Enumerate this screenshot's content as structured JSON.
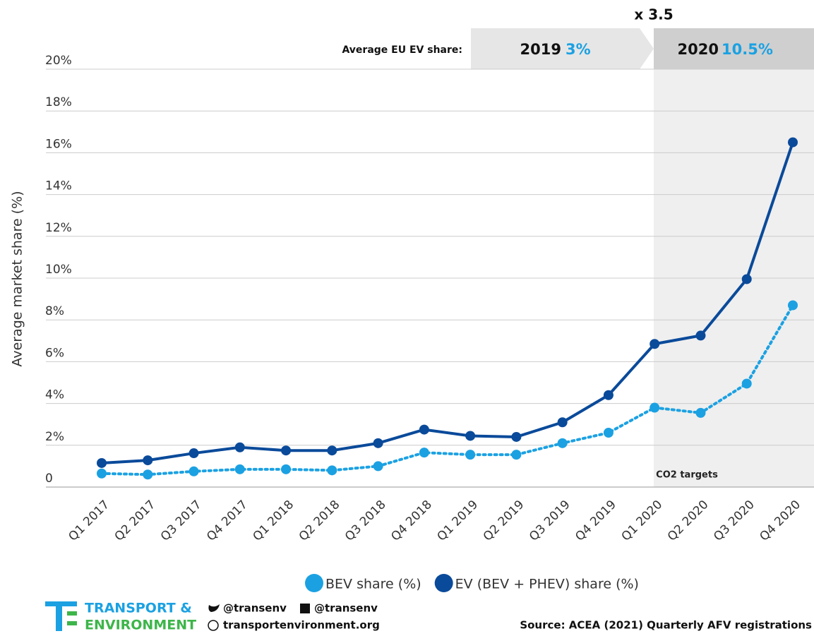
{
  "chart_data": {
    "type": "line",
    "y_label": "Average market share (%)",
    "categories": [
      "Q1 2017",
      "Q2 2017",
      "Q3 2017",
      "Q4 2017",
      "Q1 2018",
      "Q2 2018",
      "Q3 2018",
      "Q4 2018",
      "Q1 2019",
      "Q2 2019",
      "Q3 2019",
      "Q4 2019",
      "Q1 2020",
      "Q2 2020",
      "Q3 2020",
      "Q4 2020"
    ],
    "series": [
      {
        "name": "BEV share (%)",
        "color": "#1ba1e2",
        "style": "dotted",
        "values": [
          0.65,
          0.6,
          0.75,
          0.85,
          0.85,
          0.8,
          1.0,
          1.65,
          1.55,
          1.55,
          2.1,
          2.6,
          3.8,
          3.55,
          4.95,
          8.7
        ]
      },
      {
        "name": "EV (BEV + PHEV) share (%)",
        "color": "#0a4a9a",
        "style": "solid",
        "values": [
          1.15,
          1.28,
          1.62,
          1.9,
          1.75,
          1.75,
          2.1,
          2.75,
          2.45,
          2.4,
          3.1,
          4.4,
          6.85,
          7.25,
          9.95,
          16.5
        ]
      }
    ],
    "ylim": [
      0,
      20
    ],
    "yticks": [
      0,
      {
        "value": 2,
        "label": "2%"
      },
      {
        "value": 4,
        "label": "4%"
      },
      {
        "value": 6,
        "label": "6%"
      },
      {
        "value": 8,
        "label": "8%"
      },
      {
        "value": 10,
        "label": "10%"
      },
      {
        "value": 12,
        "label": "12%"
      },
      {
        "value": 14,
        "label": "14%"
      },
      {
        "value": 16,
        "label": "16%"
      },
      {
        "value": 18,
        "label": "18%"
      },
      {
        "value": 20,
        "label": "20%"
      }
    ],
    "grid": true,
    "header": {
      "label": "Average EU EV share:",
      "year_2019": "2019",
      "share_2019": "3%",
      "year_2020": "2020",
      "share_2020": "10.5%",
      "multiplier": "x 3.5"
    },
    "annotation": "CO2 targets",
    "footer": {
      "logo_line1": "TRANSPORT &",
      "logo_line2": "ENVIRONMENT",
      "twitter": "@transenv",
      "facebook": "@transenv",
      "website": "transportenvironment.org",
      "source": "Source: ACEA (2021) Quarterly AFV registrations"
    }
  }
}
